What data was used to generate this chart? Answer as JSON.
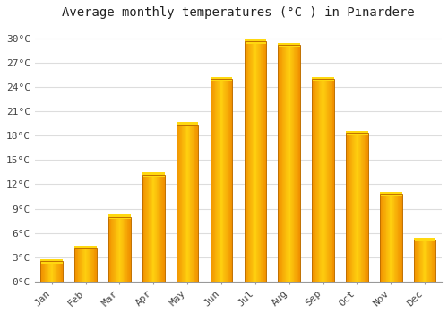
{
  "title": "Average monthly temperatures (°C ) in Pınardere",
  "months": [
    "Jan",
    "Feb",
    "Mar",
    "Apr",
    "May",
    "Jun",
    "Jul",
    "Aug",
    "Sep",
    "Oct",
    "Nov",
    "Dec"
  ],
  "values": [
    2.5,
    4.2,
    8.0,
    13.2,
    19.4,
    25.0,
    29.6,
    29.2,
    25.0,
    18.3,
    10.8,
    5.2
  ],
  "bar_color_main": "#FFB300",
  "bar_color_bright": "#FFD000",
  "bar_color_dark": "#F08000",
  "bar_edge_color": "#C07000",
  "background_color": "#ffffff",
  "grid_color": "#dddddd",
  "yticks": [
    0,
    3,
    6,
    9,
    12,
    15,
    18,
    21,
    24,
    27,
    30
  ],
  "ylim": [
    0,
    31.5
  ],
  "title_fontsize": 10,
  "tick_fontsize": 8,
  "bar_width": 0.65
}
